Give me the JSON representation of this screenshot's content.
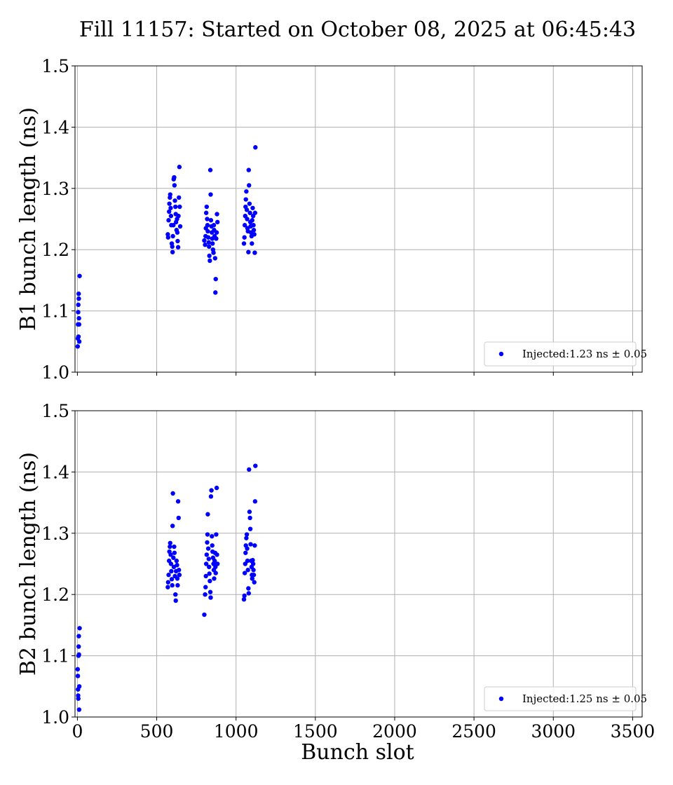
{
  "chart_data": {
    "type": "scatter",
    "title": "Fill 11157: Started on October 08, 2025 at 06:45:43",
    "xlabel": "Bunch slot",
    "xlim": [
      -15,
      3560
    ],
    "xticks": [
      0,
      500,
      1000,
      1500,
      2000,
      2500,
      3000,
      3500
    ],
    "xtick_labels": [
      "0",
      "500",
      "1000",
      "1500",
      "2000",
      "2500",
      "3000",
      "3500"
    ],
    "grid": true,
    "marker_color": "#0000ff",
    "panels": [
      {
        "ylabel": "B1 bunch length (ns)",
        "ylim": [
          1.0,
          1.5
        ],
        "yticks": [
          1.0,
          1.1,
          1.2,
          1.3,
          1.4,
          1.5
        ],
        "ytick_labels": [
          "1.0",
          "1.1",
          "1.2",
          "1.3",
          "1.4",
          "1.5"
        ],
        "legend_position": "lower right",
        "series": [
          {
            "name": "Injected:1.23 ns ± 0.05",
            "points": [
              [
                2,
                1.042
              ],
              [
                3,
                1.055
              ],
              [
                4,
                1.078
              ],
              [
                5,
                1.098
              ],
              [
                6,
                1.11
              ],
              [
                7,
                1.058
              ],
              [
                8,
                1.128
              ],
              [
                9,
                1.12
              ],
              [
                10,
                1.088
              ],
              [
                11,
                1.078
              ],
              [
                12,
                1.05
              ],
              [
                14,
                1.157
              ],
              [
                570,
                1.225
              ],
              [
                572,
                1.22
              ],
              [
                575,
                1.248
              ],
              [
                578,
                1.262
              ],
              [
                580,
                1.275
              ],
              [
                583,
                1.285
              ],
              [
                585,
                1.29
              ],
              [
                588,
                1.268
              ],
              [
                590,
                1.255
              ],
              [
                592,
                1.24
              ],
              [
                595,
                1.21
              ],
              [
                598,
                1.205
              ],
              [
                600,
                1.196
              ],
              [
                602,
                1.222
              ],
              [
                605,
                1.24
              ],
              [
                607,
                1.315
              ],
              [
                610,
                1.318
              ],
              [
                612,
                1.305
              ],
              [
                615,
                1.28
              ],
              [
                618,
                1.27
              ],
              [
                620,
                1.258
              ],
              [
                622,
                1.245
              ],
              [
                625,
                1.232
              ],
              [
                628,
                1.25
              ],
              [
                630,
                1.228
              ],
              [
                632,
                1.214
              ],
              [
                635,
                1.204
              ],
              [
                637,
                1.255
              ],
              [
                640,
                1.285
              ],
              [
                643,
                1.335
              ],
              [
                645,
                1.27
              ],
              [
                648,
                1.238
              ],
              [
                800,
                1.215
              ],
              [
                805,
                1.208
              ],
              [
                808,
                1.222
              ],
              [
                810,
                1.235
              ],
              [
                812,
                1.26
              ],
              [
                815,
                1.27
              ],
              [
                818,
                1.25
              ],
              [
                820,
                1.24
              ],
              [
                822,
                1.23
              ],
              [
                825,
                1.22
              ],
              [
                828,
                1.212
              ],
              [
                830,
                1.205
              ],
              [
                832,
                1.19
              ],
              [
                835,
                1.182
              ],
              [
                838,
                1.33
              ],
              [
                840,
                1.29
              ],
              [
                842,
                1.248
              ],
              [
                845,
                1.238
              ],
              [
                848,
                1.228
              ],
              [
                850,
                1.218
              ],
              [
                852,
                1.21
              ],
              [
                855,
                1.2
              ],
              [
                858,
                1.195
              ],
              [
                860,
                1.24
              ],
              [
                862,
                1.232
              ],
              [
                865,
                1.222
              ],
              [
                868,
                1.186
              ],
              [
                870,
                1.13
              ],
              [
                872,
                1.152
              ],
              [
                875,
                1.218
              ],
              [
                878,
                1.228
              ],
              [
                880,
                1.258
              ],
              [
                883,
                1.245
              ],
              [
                1050,
                1.21
              ],
              [
                1053,
                1.22
              ],
              [
                1055,
                1.24
              ],
              [
                1058,
                1.255
              ],
              [
                1060,
                1.27
              ],
              [
                1062,
                1.282
              ],
              [
                1065,
                1.295
              ],
              [
                1068,
                1.265
              ],
              [
                1070,
                1.25
              ],
              [
                1072,
                1.235
              ],
              [
                1075,
                1.23
              ],
              [
                1078,
                1.196
              ],
              [
                1080,
                1.33
              ],
              [
                1082,
                1.305
              ],
              [
                1085,
                1.275
              ],
              [
                1088,
                1.26
              ],
              [
                1090,
                1.245
              ],
              [
                1092,
                1.238
              ],
              [
                1095,
                1.228
              ],
              [
                1098,
                1.222
              ],
              [
                1100,
                1.21
              ],
              [
                1102,
                1.248
              ],
              [
                1105,
                1.268
              ],
              [
                1108,
                1.255
              ],
              [
                1110,
                1.24
              ],
              [
                1112,
                1.232
              ],
              [
                1115,
                1.225
              ],
              [
                1118,
                1.195
              ],
              [
                1120,
                1.26
              ],
              [
                1122,
                1.367
              ]
            ]
          }
        ]
      },
      {
        "ylabel": "B2 bunch length (ns)",
        "ylim": [
          1.0,
          1.5
        ],
        "yticks": [
          1.0,
          1.1,
          1.2,
          1.3,
          1.4,
          1.5
        ],
        "ytick_labels": [
          "1.0",
          "1.1",
          "1.2",
          "1.3",
          "1.4",
          "1.5"
        ],
        "legend_position": "lower right",
        "series": [
          {
            "name": "Injected:1.25 ns ± 0.05",
            "points": [
              [
                2,
                1.078
              ],
              [
                3,
                1.067
              ],
              [
                4,
                1.045
              ],
              [
                5,
                1.035
              ],
              [
                6,
                1.03
              ],
              [
                7,
                1.1
              ],
              [
                8,
                1.115
              ],
              [
                9,
                1.132
              ],
              [
                10,
                1.102
              ],
              [
                11,
                1.012
              ],
              [
                12,
                1.05
              ],
              [
                14,
                1.145
              ],
              [
                570,
                1.212
              ],
              [
                572,
                1.22
              ],
              [
                575,
                1.232
              ],
              [
                578,
                1.255
              ],
              [
                580,
                1.27
              ],
              [
                583,
                1.278
              ],
              [
                585,
                1.284
              ],
              [
                588,
                1.265
              ],
              [
                590,
                1.25
              ],
              [
                592,
                1.238
              ],
              [
                595,
                1.225
              ],
              [
                598,
                1.215
              ],
              [
                600,
                1.312
              ],
              [
                602,
                1.365
              ],
              [
                605,
                1.26
              ],
              [
                608,
                1.245
              ],
              [
                610,
                1.278
              ],
              [
                612,
                1.268
              ],
              [
                615,
                1.23
              ],
              [
                618,
                1.2
              ],
              [
                620,
                1.19
              ],
              [
                622,
                1.238
              ],
              [
                625,
                1.255
              ],
              [
                628,
                1.248
              ],
              [
                630,
                1.226
              ],
              [
                632,
                1.215
              ],
              [
                635,
                1.352
              ],
              [
                638,
                1.325
              ],
              [
                640,
                1.24
              ],
              [
                643,
                1.232
              ],
              [
                800,
                1.167
              ],
              [
                805,
                1.2
              ],
              [
                808,
                1.212
              ],
              [
                810,
                1.23
              ],
              [
                812,
                1.25
              ],
              [
                815,
                1.265
              ],
              [
                818,
                1.285
              ],
              [
                820,
                1.298
              ],
              [
                822,
                1.331
              ],
              [
                825,
                1.275
              ],
              [
                828,
                1.258
              ],
              [
                830,
                1.245
              ],
              [
                832,
                1.234
              ],
              [
                835,
                1.222
              ],
              [
                838,
                1.204
              ],
              [
                840,
                1.195
              ],
              [
                842,
                1.36
              ],
              [
                845,
                1.37
              ],
              [
                848,
                1.295
              ],
              [
                850,
                1.28
              ],
              [
                852,
                1.27
              ],
              [
                855,
                1.26
              ],
              [
                858,
                1.25
              ],
              [
                860,
                1.24
              ],
              [
                862,
                1.226
              ],
              [
                865,
                1.255
              ],
              [
                868,
                1.268
              ],
              [
                870,
                1.245
              ],
              [
                872,
                1.235
              ],
              [
                875,
                1.298
              ],
              [
                878,
                1.374
              ],
              [
                880,
                1.265
              ],
              [
                883,
                1.25
              ],
              [
                1050,
                1.192
              ],
              [
                1053,
                1.198
              ],
              [
                1055,
                1.235
              ],
              [
                1058,
                1.25
              ],
              [
                1060,
                1.268
              ],
              [
                1062,
                1.28
              ],
              [
                1065,
                1.292
              ],
              [
                1068,
                1.298
              ],
              [
                1070,
                1.275
              ],
              [
                1072,
                1.255
              ],
              [
                1075,
                1.24
              ],
              [
                1078,
                1.21
              ],
              [
                1080,
                1.202
              ],
              [
                1082,
                1.404
              ],
              [
                1085,
                1.335
              ],
              [
                1088,
                1.325
              ],
              [
                1090,
                1.307
              ],
              [
                1092,
                1.282
              ],
              [
                1095,
                1.255
              ],
              [
                1098,
                1.245
              ],
              [
                1100,
                1.232
              ],
              [
                1102,
                1.226
              ],
              [
                1105,
                1.256
              ],
              [
                1108,
                1.25
              ],
              [
                1110,
                1.24
              ],
              [
                1112,
                1.232
              ],
              [
                1115,
                1.22
              ],
              [
                1118,
                1.28
              ],
              [
                1120,
                1.352
              ],
              [
                1122,
                1.41
              ]
            ]
          }
        ]
      }
    ]
  }
}
